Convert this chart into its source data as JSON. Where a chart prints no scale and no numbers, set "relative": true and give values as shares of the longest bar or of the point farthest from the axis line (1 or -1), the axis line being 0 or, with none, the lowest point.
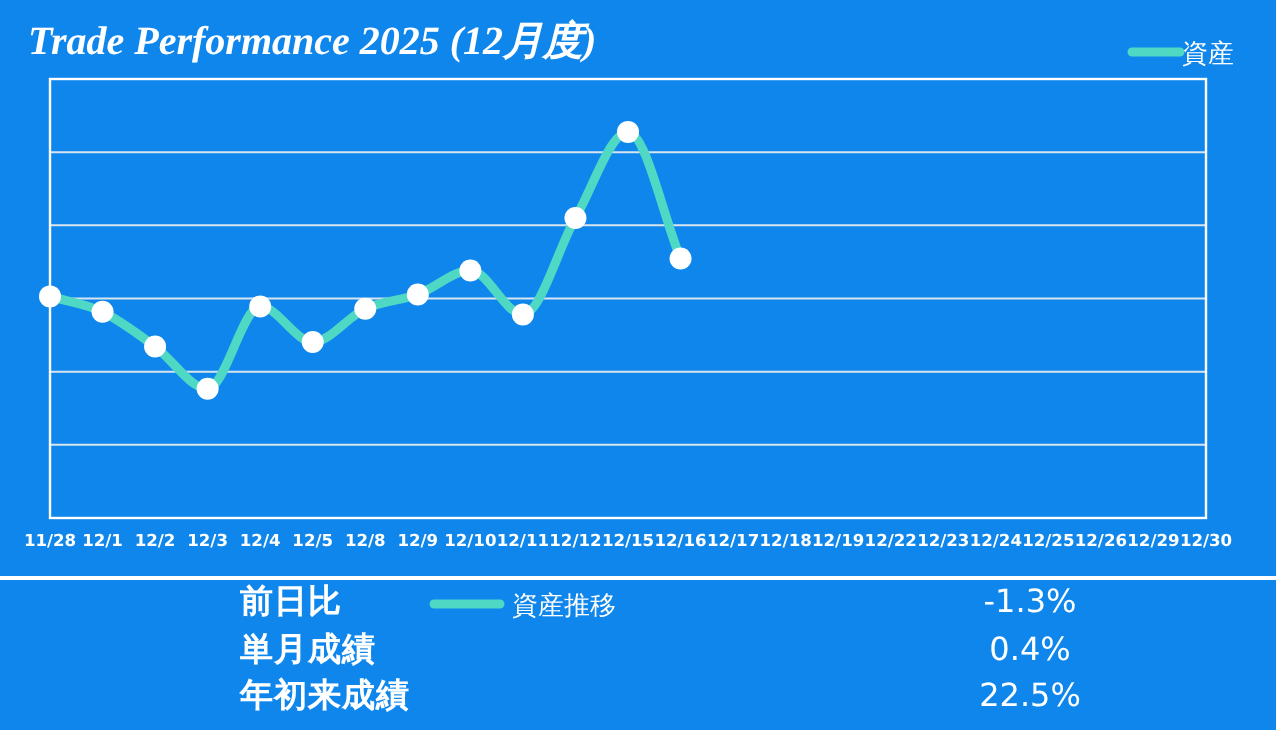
{
  "chart_data": [
    {
      "type": "line",
      "title": "Trade Performance 2025 (12月度)",
      "relative": true,
      "grid": "y",
      "legend": "top right",
      "marker": "circle",
      "line_style": "solid",
      "tick_labels": "x",
      "categories": [
        "11/28",
        "12/1",
        "12/2",
        "12/3",
        "12/4",
        "12/5",
        "12/8",
        "12/9",
        "12/10",
        "12/11",
        "12/12",
        "12/15",
        "12/16",
        "12/17",
        "12/18",
        "12/19",
        "12/22",
        "12/23",
        "12/24",
        "12/25",
        "12/26",
        "12/29",
        "12/30"
      ],
      "series": [
        {
          "name": "資産",
          "color": "#4fd8c4",
          "values": [
            0.574,
            0.534,
            0.444,
            0.335,
            0.548,
            0.456,
            0.542,
            0.579,
            0.641,
            0.527,
            0.777,
            1,
            0.672,
            null,
            null,
            null,
            null,
            null,
            null,
            null,
            null,
            null,
            null
          ]
        }
      ]
    },
    {
      "type": "other",
      "legend": "top",
      "series": [
        {
          "name": "資産推移",
          "color": "#4fd8c4"
        }
      ],
      "annotations": [
        "前日比",
        "-1.3%",
        "単月成績",
        "0.4%",
        "年初来成績",
        "22.5%"
      ]
    }
  ]
}
